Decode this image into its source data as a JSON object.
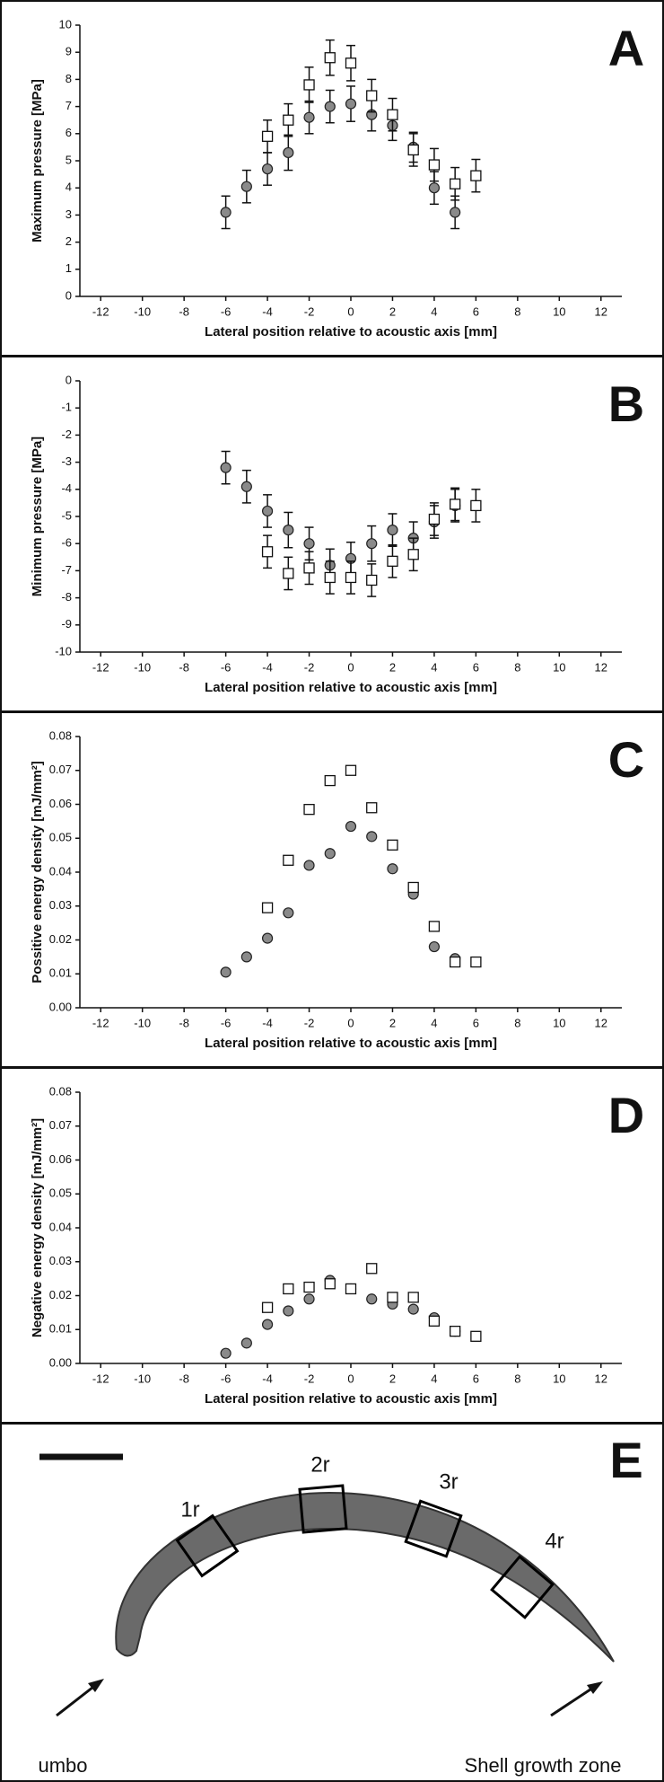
{
  "chart_data": [
    {
      "type": "scatter",
      "panel": "A",
      "ylabel": "Maximum pressure [MPa]",
      "xlabel": "Lateral position relative to acoustic axis [mm]",
      "xlim": [
        -13,
        13
      ],
      "xticks": [
        -12,
        -10,
        -8,
        -6,
        -4,
        -2,
        0,
        2,
        4,
        6,
        8,
        10,
        12
      ],
      "ylim": [
        0,
        10
      ],
      "yticks": [
        0,
        1,
        2,
        3,
        4,
        5,
        6,
        7,
        8,
        9,
        10
      ],
      "series": [
        {
          "marker": "circle",
          "color": "#8a8a8a",
          "x": [
            -6,
            -5,
            -4,
            -3,
            -2,
            -1,
            0,
            1,
            2,
            3,
            4,
            5
          ],
          "values": [
            3.1,
            4.05,
            4.7,
            5.3,
            6.6,
            7.0,
            7.1,
            6.7,
            6.3,
            5.5,
            4.0,
            3.1
          ],
          "errors": [
            0.6,
            0.6,
            0.6,
            0.65,
            0.6,
            0.6,
            0.65,
            0.6,
            0.55,
            0.55,
            0.6,
            0.6
          ]
        },
        {
          "marker": "square",
          "color": "#ffffff",
          "x": [
            -4,
            -3,
            -2,
            -1,
            0,
            1,
            2,
            3,
            4,
            5,
            6
          ],
          "values": [
            5.9,
            6.5,
            7.8,
            8.8,
            8.6,
            7.4,
            6.7,
            5.4,
            4.85,
            4.15,
            4.45
          ],
          "errors": [
            0.6,
            0.6,
            0.65,
            0.65,
            0.65,
            0.6,
            0.6,
            0.6,
            0.6,
            0.6,
            0.6
          ]
        }
      ]
    },
    {
      "type": "scatter",
      "panel": "B",
      "ylabel": "Minimum pressure [MPa]",
      "xlabel": "Lateral position relative to acoustic axis [mm]",
      "xlim": [
        -13,
        13
      ],
      "xticks": [
        -12,
        -10,
        -8,
        -6,
        -4,
        -2,
        0,
        2,
        4,
        6,
        8,
        10,
        12
      ],
      "ylim": [
        -10,
        0
      ],
      "yticks": [
        -10,
        -9,
        -8,
        -7,
        -6,
        -5,
        -4,
        -3,
        -2,
        -1,
        0
      ],
      "series": [
        {
          "marker": "circle",
          "color": "#8a8a8a",
          "x": [
            -6,
            -5,
            -4,
            -3,
            -2,
            -1,
            0,
            1,
            2,
            3,
            4,
            5
          ],
          "values": [
            -3.2,
            -3.9,
            -4.8,
            -5.5,
            -6.0,
            -6.8,
            -6.55,
            -6.0,
            -5.5,
            -5.8,
            -5.2,
            -4.6
          ],
          "errors": [
            0.6,
            0.6,
            0.6,
            0.65,
            0.6,
            0.6,
            0.6,
            0.65,
            0.6,
            0.6,
            0.6,
            0.6
          ]
        },
        {
          "marker": "square",
          "color": "#ffffff",
          "x": [
            -4,
            -3,
            -2,
            -1,
            0,
            1,
            2,
            3,
            4,
            5,
            6
          ],
          "values": [
            -6.3,
            -7.1,
            -6.9,
            -7.25,
            -7.25,
            -7.35,
            -6.65,
            -6.4,
            -5.1,
            -4.55,
            -4.6
          ],
          "errors": [
            0.6,
            0.6,
            0.6,
            0.6,
            0.6,
            0.6,
            0.6,
            0.6,
            0.6,
            0.6,
            0.6
          ]
        }
      ]
    },
    {
      "type": "scatter",
      "panel": "C",
      "ylabel": "Possitive energy density [mJ/mm²]",
      "xlabel": "Lateral position relative to acoustic axis [mm]",
      "xlim": [
        -13,
        13
      ],
      "xticks": [
        -12,
        -10,
        -8,
        -6,
        -4,
        -2,
        0,
        2,
        4,
        6,
        8,
        10,
        12
      ],
      "ylim": [
        0,
        0.08
      ],
      "yticks": [
        {
          "value": 0,
          "label": "0.00"
        },
        0.01,
        0.02,
        0.03,
        0.04,
        0.05,
        0.06,
        0.07,
        0.08
      ],
      "series": [
        {
          "marker": "circle",
          "color": "#8a8a8a",
          "x": [
            -6,
            -5,
            -4,
            -3,
            -2,
            -1,
            0,
            1,
            2,
            3,
            4,
            5
          ],
          "values": [
            0.0105,
            0.015,
            0.0205,
            0.028,
            0.042,
            0.0455,
            0.0535,
            0.0505,
            0.041,
            0.0335,
            0.018,
            0.0145
          ]
        },
        {
          "marker": "square",
          "color": "#ffffff",
          "x": [
            -4,
            -3,
            -2,
            -1,
            0,
            1,
            2,
            3,
            4,
            5,
            6
          ],
          "values": [
            0.0295,
            0.0435,
            0.0585,
            0.067,
            0.07,
            0.059,
            0.048,
            0.0355,
            0.024,
            0.0135,
            0.0135
          ]
        }
      ]
    },
    {
      "type": "scatter",
      "panel": "D",
      "ylabel": "Negative energy density [mJ/mm²]",
      "xlabel": "Lateral position relative to acoustic axis [mm]",
      "xlim": [
        -13,
        13
      ],
      "xticks": [
        -12,
        -10,
        -8,
        -6,
        -4,
        -2,
        0,
        2,
        4,
        6,
        8,
        10,
        12
      ],
      "ylim": [
        0,
        0.08
      ],
      "yticks": [
        {
          "value": 0,
          "label": "0.00"
        },
        0.01,
        0.02,
        0.03,
        0.04,
        0.05,
        0.06,
        0.07,
        0.08
      ],
      "series": [
        {
          "marker": "circle",
          "color": "#8a8a8a",
          "x": [
            -6,
            -5,
            -4,
            -3,
            -2,
            -1,
            0,
            1,
            2,
            3,
            4,
            5
          ],
          "values": [
            0.003,
            0.006,
            0.0115,
            0.0155,
            0.019,
            0.0245,
            0.022,
            0.019,
            0.0175,
            0.016,
            0.0135,
            0.0095
          ]
        },
        {
          "marker": "square",
          "color": "#ffffff",
          "x": [
            -4,
            -3,
            -2,
            -1,
            0,
            1,
            2,
            3,
            4,
            5,
            6
          ],
          "values": [
            0.0165,
            0.022,
            0.0225,
            0.0235,
            0.022,
            0.028,
            0.0195,
            0.0195,
            0.0125,
            0.0095,
            0.008
          ]
        }
      ]
    }
  ],
  "diagram": {
    "panel": "E",
    "regions": [
      "1r",
      "2r",
      "3r",
      "4r"
    ],
    "left_label": "umbo",
    "right_label": "Shell growth zone"
  }
}
